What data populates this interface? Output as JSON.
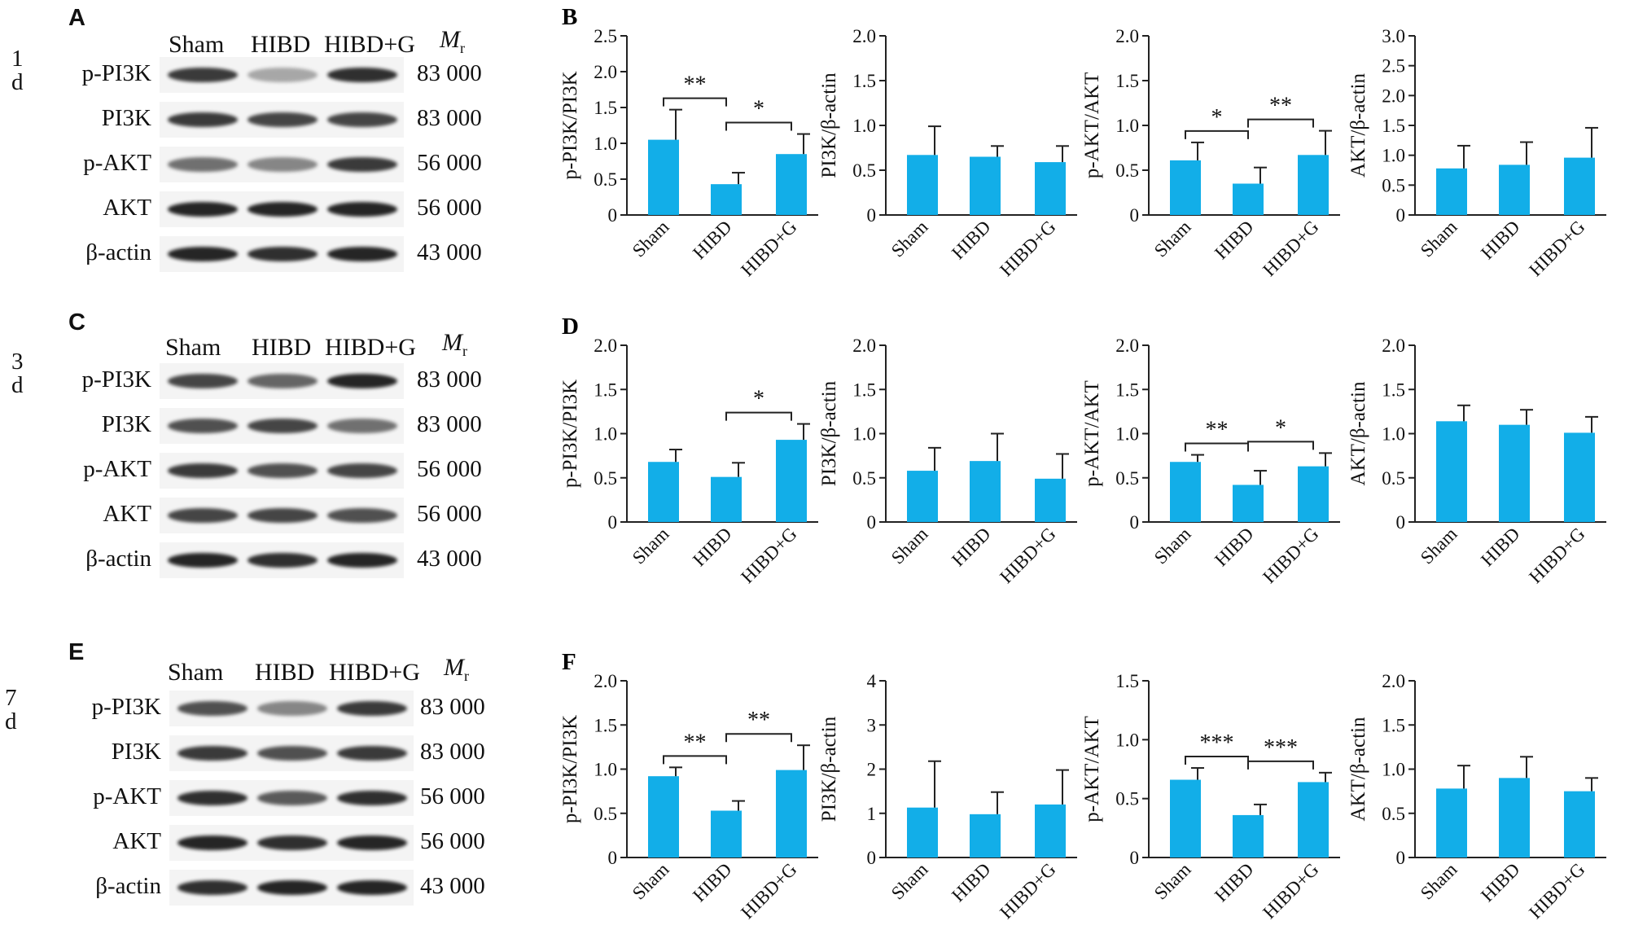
{
  "colors": {
    "bar": "#12aee8",
    "axis": "#222222",
    "band": "#1a1a1a"
  },
  "panel_letters": [
    "A",
    "B",
    "C",
    "D",
    "E",
    "F"
  ],
  "days": [
    "1 d",
    "3 d",
    "7 d"
  ],
  "blots": [
    {
      "letter": "A",
      "day": "1 d",
      "lanes": [
        "Sham",
        "HIBD",
        "HIBD+G"
      ],
      "mr": "M",
      "mr_sub": "r",
      "rows": [
        {
          "label": "p-PI3K",
          "mw": "83 000",
          "intensity": [
            0.85,
            0.35,
            0.9
          ]
        },
        {
          "label": "PI3K",
          "mw": "83 000",
          "intensity": [
            0.85,
            0.8,
            0.8
          ]
        },
        {
          "label": "p-AKT",
          "mw": "56 000",
          "intensity": [
            0.6,
            0.5,
            0.85
          ]
        },
        {
          "label": "AKT",
          "mw": "56 000",
          "intensity": [
            0.95,
            0.95,
            0.95
          ]
        },
        {
          "label": "β-actin",
          "mw": "43 000",
          "intensity": [
            0.95,
            0.9,
            0.95
          ]
        }
      ]
    },
    {
      "letter": "C",
      "day": "3 d",
      "lanes": [
        "Sham",
        "HIBD",
        "HIBD+G"
      ],
      "mr": "M",
      "mr_sub": "r",
      "rows": [
        {
          "label": "p-PI3K",
          "mw": "83 000",
          "intensity": [
            0.8,
            0.65,
            0.95
          ]
        },
        {
          "label": "PI3K",
          "mw": "83 000",
          "intensity": [
            0.75,
            0.8,
            0.6
          ]
        },
        {
          "label": "p-AKT",
          "mw": "56 000",
          "intensity": [
            0.85,
            0.75,
            0.8
          ]
        },
        {
          "label": "AKT",
          "mw": "56 000",
          "intensity": [
            0.8,
            0.8,
            0.75
          ]
        },
        {
          "label": "β-actin",
          "mw": "43 000",
          "intensity": [
            0.95,
            0.9,
            0.95
          ]
        }
      ]
    },
    {
      "letter": "E",
      "day": "7 d",
      "lanes": [
        "Sham",
        "HIBD",
        "HIBD+G"
      ],
      "mr": "M",
      "mr_sub": "r",
      "rows": [
        {
          "label": "p-PI3K",
          "mw": "83 000",
          "intensity": [
            0.75,
            0.5,
            0.85
          ]
        },
        {
          "label": "PI3K",
          "mw": "83 000",
          "intensity": [
            0.85,
            0.75,
            0.85
          ]
        },
        {
          "label": "p-AKT",
          "mw": "56 000",
          "intensity": [
            0.9,
            0.7,
            0.9
          ]
        },
        {
          "label": "AKT",
          "mw": "56 000",
          "intensity": [
            0.95,
            0.9,
            0.95
          ]
        },
        {
          "label": "β-actin",
          "mw": "43 000",
          "intensity": [
            0.9,
            0.95,
            0.95
          ]
        }
      ]
    }
  ],
  "chart_data": [
    {
      "panel": "B",
      "type": "bar",
      "ylabel": "p-PI3K/PI3K",
      "categories": [
        "Sham",
        "HIBD",
        "HIBD+G"
      ],
      "values": [
        1.05,
        0.43,
        0.85
      ],
      "errors": [
        0.42,
        0.16,
        0.28
      ],
      "ylim": [
        0,
        2.5
      ],
      "ticks": [
        "0",
        "0.5",
        "1.0",
        "1.5",
        "2.0",
        "2.5"
      ],
      "sig": [
        {
          "from": 0,
          "to": 1,
          "label": "**"
        },
        {
          "from": 1,
          "to": 2,
          "label": "*"
        }
      ]
    },
    {
      "panel": "",
      "type": "bar",
      "ylabel": "PI3K/β-actin",
      "categories": [
        "Sham",
        "HIBD",
        "HIBD+G"
      ],
      "values": [
        0.67,
        0.65,
        0.59
      ],
      "errors": [
        0.32,
        0.12,
        0.18
      ],
      "ylim": [
        0,
        2.0
      ],
      "ticks": [
        "0",
        "0.5",
        "1.0",
        "1.5",
        "2.0"
      ],
      "sig": []
    },
    {
      "panel": "",
      "type": "bar",
      "ylabel": "p-AKT/AKT",
      "categories": [
        "Sham",
        "HIBD",
        "HIBD+G"
      ],
      "values": [
        0.61,
        0.35,
        0.67
      ],
      "errors": [
        0.2,
        0.18,
        0.27
      ],
      "ylim": [
        0,
        2.0
      ],
      "ticks": [
        "0",
        "0.5",
        "1.0",
        "1.5",
        "2.0"
      ],
      "sig": [
        {
          "from": 0,
          "to": 1,
          "label": "*"
        },
        {
          "from": 1,
          "to": 2,
          "label": "**"
        }
      ]
    },
    {
      "panel": "",
      "type": "bar",
      "ylabel": "AKT/β-actin",
      "categories": [
        "Sham",
        "HIBD",
        "HIBD+G"
      ],
      "values": [
        0.78,
        0.84,
        0.96
      ],
      "errors": [
        0.38,
        0.38,
        0.5
      ],
      "ylim": [
        0,
        3.0
      ],
      "ticks": [
        "0",
        "0.5",
        "1.0",
        "1.5",
        "2.0",
        "2.5",
        "3.0"
      ],
      "sig": []
    },
    {
      "panel": "D",
      "type": "bar",
      "ylabel": "p-PI3K/PI3K",
      "categories": [
        "Sham",
        "HIBD",
        "HIBD+G"
      ],
      "values": [
        0.68,
        0.51,
        0.93
      ],
      "errors": [
        0.14,
        0.16,
        0.18
      ],
      "ylim": [
        0,
        2.0
      ],
      "ticks": [
        "0",
        "0.5",
        "1.0",
        "1.5",
        "2.0"
      ],
      "sig": [
        {
          "from": 1,
          "to": 2,
          "label": "*"
        }
      ]
    },
    {
      "panel": "",
      "type": "bar",
      "ylabel": "PI3K/β-actin",
      "categories": [
        "Sham",
        "HIBD",
        "HIBD+G"
      ],
      "values": [
        0.58,
        0.69,
        0.49
      ],
      "errors": [
        0.26,
        0.31,
        0.28
      ],
      "ylim": [
        0,
        2.0
      ],
      "ticks": [
        "0",
        "0.5",
        "1.0",
        "1.5",
        "2.0"
      ],
      "sig": []
    },
    {
      "panel": "",
      "type": "bar",
      "ylabel": "p-AKT/AKT",
      "categories": [
        "Sham",
        "HIBD",
        "HIBD+G"
      ],
      "values": [
        0.68,
        0.42,
        0.63
      ],
      "errors": [
        0.08,
        0.16,
        0.15
      ],
      "ylim": [
        0,
        2.0
      ],
      "ticks": [
        "0",
        "0.5",
        "1.0",
        "1.5",
        "2.0"
      ],
      "sig": [
        {
          "from": 0,
          "to": 1,
          "label": "**"
        },
        {
          "from": 1,
          "to": 2,
          "label": "*"
        }
      ]
    },
    {
      "panel": "",
      "type": "bar",
      "ylabel": "AKT/β-actin",
      "categories": [
        "Sham",
        "HIBD",
        "HIBD+G"
      ],
      "values": [
        1.14,
        1.1,
        1.01
      ],
      "errors": [
        0.18,
        0.17,
        0.18
      ],
      "ylim": [
        0,
        2.0
      ],
      "ticks": [
        "0",
        "0.5",
        "1.0",
        "1.5",
        "2.0"
      ],
      "sig": []
    },
    {
      "panel": "F",
      "type": "bar",
      "ylabel": "p-PI3K/PI3K",
      "categories": [
        "Sham",
        "HIBD",
        "HIBD+G"
      ],
      "values": [
        0.92,
        0.53,
        0.99
      ],
      "errors": [
        0.1,
        0.11,
        0.28
      ],
      "ylim": [
        0,
        2.0
      ],
      "ticks": [
        "0",
        "0.5",
        "1.0",
        "1.5",
        "2.0"
      ],
      "sig": [
        {
          "from": 0,
          "to": 1,
          "label": "**"
        },
        {
          "from": 1,
          "to": 2,
          "label": "**"
        }
      ]
    },
    {
      "panel": "",
      "type": "bar",
      "ylabel": "PI3K/β-actin",
      "categories": [
        "Sham",
        "HIBD",
        "HIBD+G"
      ],
      "values": [
        1.13,
        0.98,
        1.2
      ],
      "errors": [
        1.05,
        0.5,
        0.78
      ],
      "ylim": [
        0,
        4
      ],
      "ticks": [
        "0",
        "1",
        "2",
        "3",
        "4"
      ],
      "sig": []
    },
    {
      "panel": "",
      "type": "bar",
      "ylabel": "p-AKT/AKT",
      "categories": [
        "Sham",
        "HIBD",
        "HIBD+G"
      ],
      "values": [
        0.66,
        0.36,
        0.64
      ],
      "errors": [
        0.1,
        0.09,
        0.08
      ],
      "ylim": [
        0,
        1.5
      ],
      "ticks": [
        "0",
        "0.5",
        "1.0",
        "1.5"
      ],
      "sig": [
        {
          "from": 0,
          "to": 1,
          "label": "***"
        },
        {
          "from": 1,
          "to": 2,
          "label": "***"
        }
      ]
    },
    {
      "panel": "",
      "type": "bar",
      "ylabel": "AKT/β-actin",
      "categories": [
        "Sham",
        "HIBD",
        "HIBD+G"
      ],
      "values": [
        0.78,
        0.9,
        0.75
      ],
      "errors": [
        0.26,
        0.24,
        0.15
      ],
      "ylim": [
        0,
        2.0
      ],
      "ticks": [
        "0",
        "0.5",
        "1.0",
        "1.5",
        "2.0"
      ],
      "sig": []
    }
  ]
}
